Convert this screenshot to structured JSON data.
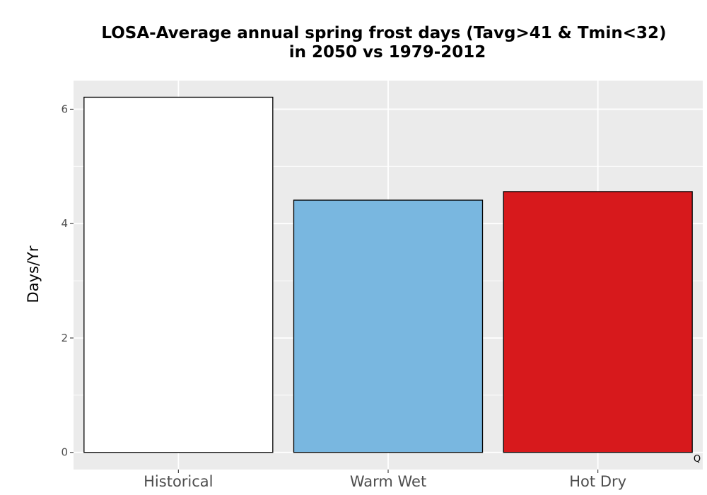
{
  "chart_data": {
    "type": "bar",
    "title_lines": [
      "LOSA-Average annual spring frost days (Tavg>41 & Tmin<32)",
      "in 2050 vs 1979-2012"
    ],
    "xlabel": "",
    "ylabel": "Days/Yr",
    "categories": [
      "Historical",
      "Warm Wet",
      "Hot Dry"
    ],
    "values": [
      6.21,
      4.41,
      4.56
    ],
    "bar_colors": [
      "#ffffff",
      "#79b7e0",
      "#d7191c"
    ],
    "bar_outline": "#000000",
    "ylim": [
      -0.3,
      6.5
    ],
    "y_ticks": [
      0,
      2,
      4,
      6
    ],
    "y_tick_labels": [
      "0",
      "2",
      "4",
      "6"
    ],
    "grid": true,
    "panel_background": "#ebebeb",
    "grid_color": "#ffffff",
    "legend": "none",
    "corner_mark": "Q"
  }
}
